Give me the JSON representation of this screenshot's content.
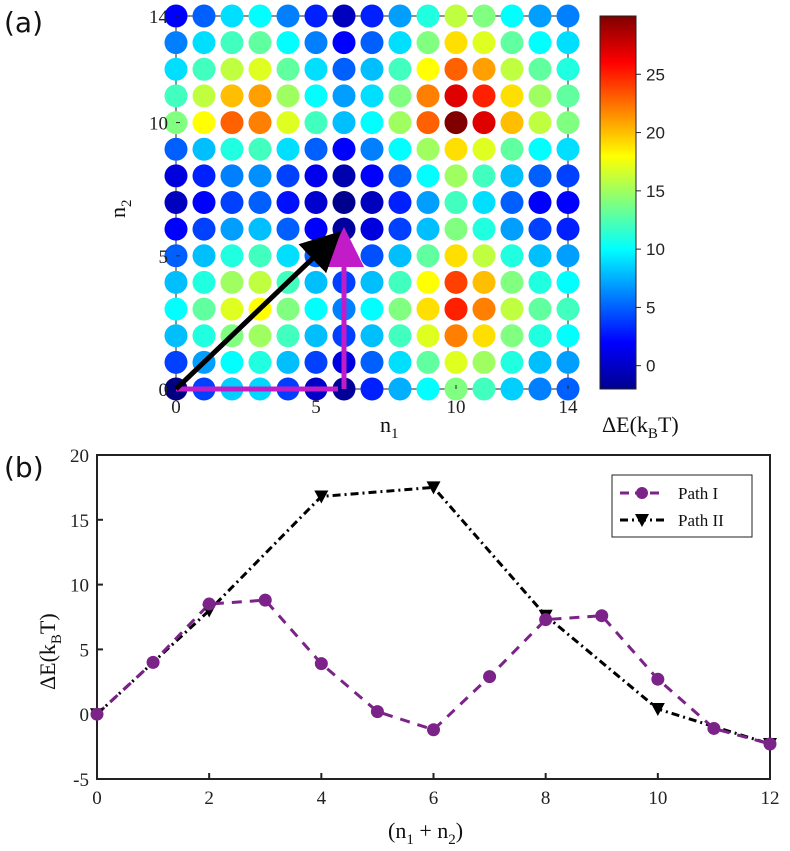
{
  "colors": {
    "path1_arrow": "#c21cc9",
    "path1_line": "#7b2388",
    "path2": "#000000"
  },
  "chart_data": [
    {
      "type": "heatmap",
      "panel_label": "(a)",
      "xlabel": "n",
      "xlabel_sub": "1",
      "ylabel": "n",
      "ylabel_sub": "2",
      "xlim": [
        0,
        14
      ],
      "ylim": [
        0,
        14
      ],
      "xticks": [
        "0",
        "5",
        "10",
        "14"
      ],
      "yticks": [
        "0",
        "5",
        "10",
        "14"
      ],
      "colorbar": {
        "range": [
          -2,
          30
        ],
        "ticks": [
          "0",
          "5",
          "10",
          "15",
          "20",
          "25"
        ],
        "label": "ΔE(k",
        "label_sub": "B",
        "label_end": "T)"
      },
      "arrows": [
        {
          "name": "Path I (horizontal)",
          "from": [
            0,
            0
          ],
          "to": [
            6,
            0
          ]
        },
        {
          "name": "Path I (vertical)",
          "from": [
            6,
            0
          ],
          "to": [
            6,
            6
          ]
        },
        {
          "name": "Path II (diagonal)",
          "from": [
            0,
            0
          ],
          "to": [
            6,
            6
          ]
        }
      ],
      "grid_values": [
        [
          -2,
          4,
          8.5,
          8.8,
          3.9,
          0.2,
          -1.2,
          3,
          7.5,
          10,
          14,
          12,
          8.5,
          6,
          5
        ],
        [
          4,
          7,
          10,
          11,
          8,
          4,
          1,
          5,
          9,
          13,
          17,
          15,
          11,
          8,
          7
        ],
        [
          8,
          11,
          14,
          15,
          12,
          8,
          4,
          8,
          12,
          17,
          22,
          19,
          14,
          11,
          10
        ],
        [
          10,
          13,
          17,
          18,
          14,
          10,
          6,
          10,
          14,
          19,
          25,
          22,
          16,
          13,
          12
        ],
        [
          8,
          11,
          15,
          16,
          12,
          8,
          4,
          8,
          12,
          18,
          24,
          20,
          14,
          11,
          10
        ],
        [
          5,
          8,
          11,
          12,
          9,
          5,
          1.5,
          4.5,
          8,
          13,
          19,
          16,
          11,
          8,
          7
        ],
        [
          2,
          4,
          7,
          8,
          5,
          2,
          -1,
          1,
          4,
          8,
          14,
          11,
          7,
          4,
          3
        ],
        [
          0,
          2,
          4,
          5,
          2.5,
          0.5,
          -1.5,
          0,
          3,
          7,
          12,
          9,
          5,
          2,
          2
        ],
        [
          1,
          3,
          6,
          6.5,
          4,
          1.5,
          -0.5,
          2,
          5,
          10,
          15,
          12,
          8,
          5,
          4
        ],
        [
          5,
          8,
          11,
          12,
          9,
          5,
          2,
          6,
          10,
          15,
          19,
          17,
          13,
          10,
          9
        ],
        [
          14,
          18,
          23,
          22,
          17,
          12,
          8,
          10,
          15,
          23,
          30,
          27,
          20,
          16,
          14
        ],
        [
          12,
          16,
          20,
          21,
          15,
          10,
          7,
          9,
          14,
          22,
          27,
          25,
          19,
          15,
          13
        ],
        [
          9,
          12,
          16,
          17,
          13,
          9,
          5,
          8,
          12,
          18,
          23,
          21,
          16,
          13,
          11
        ],
        [
          6,
          9,
          12,
          13,
          10,
          6,
          2,
          5,
          9,
          14,
          19,
          17,
          13,
          10,
          9
        ],
        [
          2,
          5,
          9,
          10,
          6,
          3,
          0,
          3,
          7,
          11,
          16,
          14,
          10,
          7,
          6
        ]
      ]
    },
    {
      "type": "line",
      "panel_label": "(b)",
      "xlabel": "(n",
      "xlabel_sub1": "1",
      "xlabel_mid": " + n",
      "xlabel_sub2": "2",
      "xlabel_end": ")",
      "ylabel": "ΔE(k",
      "ylabel_sub": "B",
      "ylabel_end": "T)",
      "xlim": [
        0,
        12
      ],
      "ylim": [
        -5,
        20
      ],
      "xticks": [
        "0",
        "2",
        "4",
        "6",
        "8",
        "10",
        "12"
      ],
      "yticks": [
        "-5",
        "0",
        "5",
        "10",
        "15",
        "20"
      ],
      "legend_position": "top-right",
      "series": [
        {
          "name": "Path I",
          "x": [
            0,
            1,
            2,
            3,
            4,
            5,
            6,
            7,
            8,
            9,
            10,
            11,
            12
          ],
          "values": [
            0,
            4,
            8.5,
            8.8,
            3.9,
            0.2,
            -1.2,
            2.9,
            7.3,
            7.6,
            2.7,
            -1.1,
            -2.3
          ]
        },
        {
          "name": "Path II",
          "x": [
            0,
            2,
            4,
            6,
            8,
            10,
            12
          ],
          "values": [
            0,
            8,
            16.8,
            17.5,
            7.6,
            0.4,
            -2.3
          ]
        }
      ]
    }
  ]
}
